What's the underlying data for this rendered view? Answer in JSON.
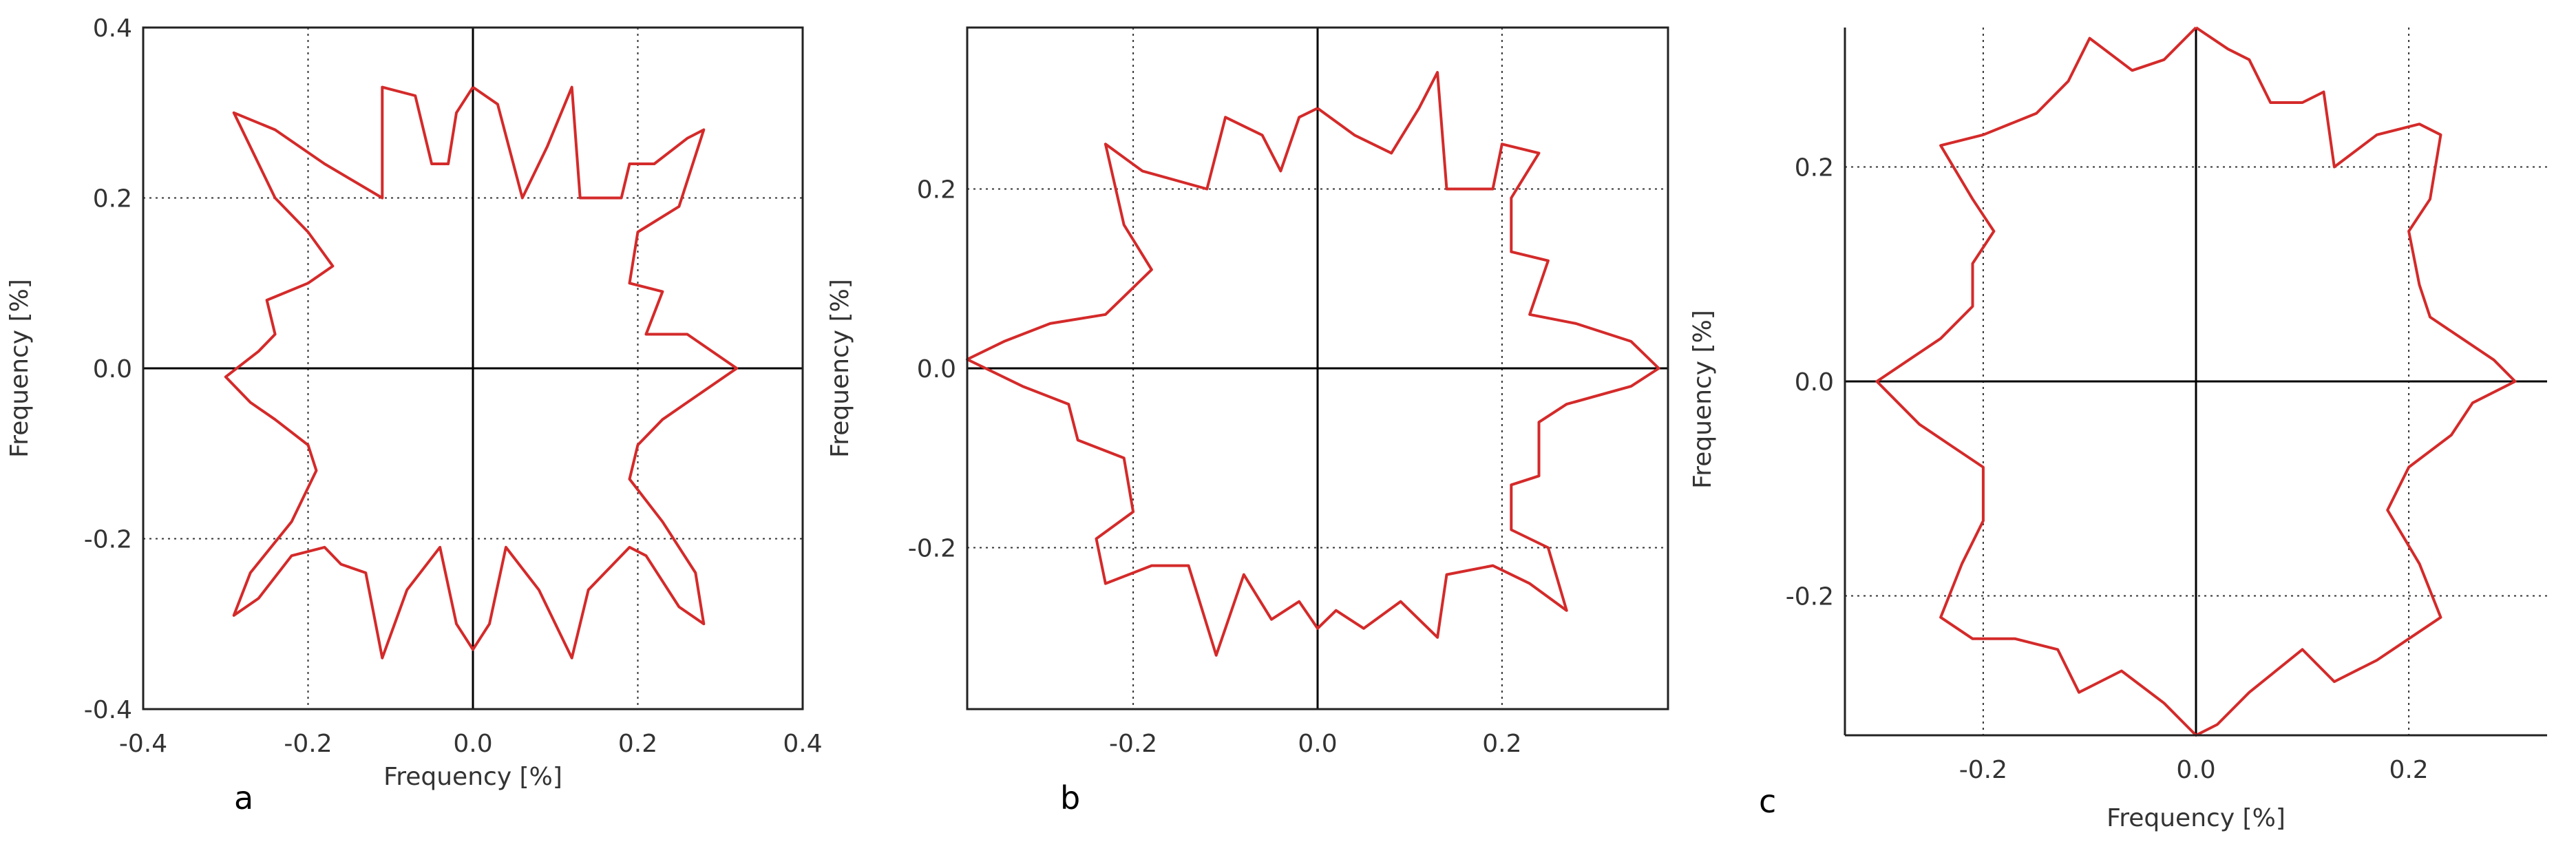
{
  "figure": {
    "colors": {
      "curve": "#d42a2a",
      "axis": "#000000",
      "frame": "#222222",
      "grid": "#333333"
    },
    "panels": [
      {
        "id": "a",
        "label": "a",
        "xlabel": "Frequency [%]",
        "ylabel": "Frequency [%]"
      },
      {
        "id": "b",
        "label": "b",
        "xlabel": "",
        "ylabel": "Frequency [%]"
      },
      {
        "id": "c",
        "label": "c",
        "xlabel": "Frequency [%]",
        "ylabel": "Frequency [%]"
      }
    ]
  },
  "chart_data": [
    {
      "type": "line",
      "panel": "a",
      "title": "",
      "xlabel": "Frequency [%]",
      "ylabel": "Frequency [%]",
      "xlim": [
        -0.4,
        0.4
      ],
      "ylim": [
        -0.4,
        0.4
      ],
      "xticks": [
        -0.4,
        -0.2,
        0.0,
        0.2,
        0.4
      ],
      "yticks": [
        -0.4,
        -0.2,
        0.0,
        0.2,
        0.4
      ],
      "xtick_labels": [
        "-0.4",
        "-0.2",
        "0.0",
        "0.2",
        "0.4"
      ],
      "ytick_labels": [
        "-0.4",
        "-0.2",
        "0.0",
        "0.2",
        "0.4"
      ],
      "grid": true,
      "series": [
        {
          "closed": true,
          "points": [
            [
              0.0,
              0.33
            ],
            [
              0.03,
              0.31
            ],
            [
              0.06,
              0.2
            ],
            [
              0.09,
              0.26
            ],
            [
              0.12,
              0.33
            ],
            [
              0.13,
              0.2
            ],
            [
              0.18,
              0.2
            ],
            [
              0.19,
              0.24
            ],
            [
              0.22,
              0.24
            ],
            [
              0.26,
              0.27
            ],
            [
              0.28,
              0.28
            ],
            [
              0.25,
              0.19
            ],
            [
              0.2,
              0.16
            ],
            [
              0.19,
              0.1
            ],
            [
              0.23,
              0.09
            ],
            [
              0.21,
              0.04
            ],
            [
              0.26,
              0.04
            ],
            [
              0.32,
              0.0
            ],
            [
              0.26,
              -0.04
            ],
            [
              0.23,
              -0.06
            ],
            [
              0.2,
              -0.09
            ],
            [
              0.19,
              -0.13
            ],
            [
              0.23,
              -0.18
            ],
            [
              0.27,
              -0.24
            ],
            [
              0.28,
              -0.3
            ],
            [
              0.25,
              -0.28
            ],
            [
              0.21,
              -0.22
            ],
            [
              0.19,
              -0.21
            ],
            [
              0.16,
              -0.24
            ],
            [
              0.14,
              -0.26
            ],
            [
              0.12,
              -0.34
            ],
            [
              0.08,
              -0.26
            ],
            [
              0.04,
              -0.21
            ],
            [
              0.02,
              -0.3
            ],
            [
              0.0,
              -0.33
            ],
            [
              -0.02,
              -0.3
            ],
            [
              -0.04,
              -0.21
            ],
            [
              -0.08,
              -0.26
            ],
            [
              -0.11,
              -0.34
            ],
            [
              -0.13,
              -0.24
            ],
            [
              -0.16,
              -0.23
            ],
            [
              -0.18,
              -0.21
            ],
            [
              -0.22,
              -0.22
            ],
            [
              -0.26,
              -0.27
            ],
            [
              -0.29,
              -0.29
            ],
            [
              -0.27,
              -0.24
            ],
            [
              -0.22,
              -0.18
            ],
            [
              -0.19,
              -0.12
            ],
            [
              -0.2,
              -0.09
            ],
            [
              -0.24,
              -0.06
            ],
            [
              -0.27,
              -0.04
            ],
            [
              -0.3,
              -0.01
            ],
            [
              -0.26,
              0.02
            ],
            [
              -0.24,
              0.04
            ],
            [
              -0.25,
              0.08
            ],
            [
              -0.2,
              0.1
            ],
            [
              -0.17,
              0.12
            ],
            [
              -0.2,
              0.16
            ],
            [
              -0.24,
              0.2
            ],
            [
              -0.28,
              0.28
            ],
            [
              -0.29,
              0.3
            ],
            [
              -0.24,
              0.28
            ],
            [
              -0.18,
              0.24
            ],
            [
              -0.11,
              0.2
            ],
            [
              -0.11,
              0.33
            ],
            [
              -0.07,
              0.32
            ],
            [
              -0.05,
              0.24
            ],
            [
              -0.03,
              0.24
            ],
            [
              -0.02,
              0.3
            ],
            [
              0.0,
              0.33
            ]
          ]
        }
      ]
    },
    {
      "type": "line",
      "panel": "b",
      "title": "",
      "xlabel": "",
      "ylabel": "Frequency [%]",
      "xlim": [
        -0.38,
        0.38
      ],
      "ylim": [
        -0.38,
        0.38
      ],
      "xticks": [
        -0.2,
        0.0,
        0.2
      ],
      "yticks": [
        -0.2,
        0.0,
        0.2
      ],
      "xtick_labels": [
        "-0.2",
        "0.0",
        "0.2"
      ],
      "ytick_labels": [
        "-0.2",
        "0.0",
        "0.2"
      ],
      "grid": true,
      "series": [
        {
          "closed": true,
          "points": [
            [
              0.0,
              0.29
            ],
            [
              0.04,
              0.26
            ],
            [
              0.08,
              0.24
            ],
            [
              0.11,
              0.29
            ],
            [
              0.13,
              0.33
            ],
            [
              0.14,
              0.2
            ],
            [
              0.19,
              0.2
            ],
            [
              0.2,
              0.25
            ],
            [
              0.24,
              0.24
            ],
            [
              0.21,
              0.19
            ],
            [
              0.21,
              0.13
            ],
            [
              0.25,
              0.12
            ],
            [
              0.23,
              0.06
            ],
            [
              0.28,
              0.05
            ],
            [
              0.34,
              0.03
            ],
            [
              0.37,
              0.0
            ],
            [
              0.34,
              -0.02
            ],
            [
              0.27,
              -0.04
            ],
            [
              0.24,
              -0.06
            ],
            [
              0.24,
              -0.12
            ],
            [
              0.21,
              -0.13
            ],
            [
              0.21,
              -0.18
            ],
            [
              0.25,
              -0.2
            ],
            [
              0.27,
              -0.27
            ],
            [
              0.23,
              -0.24
            ],
            [
              0.19,
              -0.22
            ],
            [
              0.14,
              -0.23
            ],
            [
              0.13,
              -0.3
            ],
            [
              0.09,
              -0.26
            ],
            [
              0.05,
              -0.29
            ],
            [
              0.02,
              -0.27
            ],
            [
              0.0,
              -0.29
            ],
            [
              -0.02,
              -0.26
            ],
            [
              -0.05,
              -0.28
            ],
            [
              -0.08,
              -0.23
            ],
            [
              -0.11,
              -0.32
            ],
            [
              -0.14,
              -0.22
            ],
            [
              -0.18,
              -0.22
            ],
            [
              -0.23,
              -0.24
            ],
            [
              -0.24,
              -0.19
            ],
            [
              -0.2,
              -0.16
            ],
            [
              -0.21,
              -0.1
            ],
            [
              -0.26,
              -0.08
            ],
            [
              -0.27,
              -0.04
            ],
            [
              -0.32,
              -0.02
            ],
            [
              -0.38,
              0.01
            ],
            [
              -0.34,
              0.03
            ],
            [
              -0.29,
              0.05
            ],
            [
              -0.23,
              0.06
            ],
            [
              -0.21,
              0.08
            ],
            [
              -0.18,
              0.11
            ],
            [
              -0.21,
              0.16
            ],
            [
              -0.23,
              0.25
            ],
            [
              -0.19,
              0.22
            ],
            [
              -0.12,
              0.2
            ],
            [
              -0.1,
              0.28
            ],
            [
              -0.06,
              0.26
            ],
            [
              -0.04,
              0.22
            ],
            [
              -0.02,
              0.28
            ],
            [
              0.0,
              0.29
            ]
          ]
        }
      ]
    },
    {
      "type": "line",
      "panel": "c",
      "title": "",
      "xlabel": "Frequency [%]",
      "ylabel": "Frequency [%]",
      "xlim": [
        -0.33,
        0.33
      ],
      "ylim": [
        -0.33,
        0.33
      ],
      "xticks": [
        -0.2,
        0.0,
        0.2
      ],
      "yticks": [
        -0.2,
        0.0,
        0.2
      ],
      "xtick_labels": [
        "-0.2",
        "0.0",
        "0.2"
      ],
      "ytick_labels": [
        "-0.2",
        "0.0",
        "0.2"
      ],
      "grid": true,
      "series": [
        {
          "closed": true,
          "points": [
            [
              0.0,
              0.33
            ],
            [
              0.03,
              0.31
            ],
            [
              0.05,
              0.3
            ],
            [
              0.07,
              0.26
            ],
            [
              0.1,
              0.26
            ],
            [
              0.12,
              0.27
            ],
            [
              0.13,
              0.2
            ],
            [
              0.17,
              0.23
            ],
            [
              0.21,
              0.24
            ],
            [
              0.23,
              0.23
            ],
            [
              0.22,
              0.17
            ],
            [
              0.2,
              0.14
            ],
            [
              0.21,
              0.09
            ],
            [
              0.22,
              0.06
            ],
            [
              0.25,
              0.04
            ],
            [
              0.28,
              0.02
            ],
            [
              0.3,
              0.0
            ],
            [
              0.26,
              -0.02
            ],
            [
              0.24,
              -0.05
            ],
            [
              0.2,
              -0.08
            ],
            [
              0.18,
              -0.12
            ],
            [
              0.21,
              -0.17
            ],
            [
              0.23,
              -0.22
            ],
            [
              0.2,
              -0.24
            ],
            [
              0.17,
              -0.26
            ],
            [
              0.13,
              -0.28
            ],
            [
              0.1,
              -0.25
            ],
            [
              0.05,
              -0.29
            ],
            [
              0.02,
              -0.32
            ],
            [
              0.0,
              -0.33
            ],
            [
              -0.03,
              -0.3
            ],
            [
              -0.07,
              -0.27
            ],
            [
              -0.11,
              -0.29
            ],
            [
              -0.13,
              -0.25
            ],
            [
              -0.17,
              -0.24
            ],
            [
              -0.21,
              -0.24
            ],
            [
              -0.24,
              -0.22
            ],
            [
              -0.22,
              -0.17
            ],
            [
              -0.2,
              -0.13
            ],
            [
              -0.2,
              -0.08
            ],
            [
              -0.23,
              -0.06
            ],
            [
              -0.26,
              -0.04
            ],
            [
              -0.28,
              -0.02
            ],
            [
              -0.3,
              0.0
            ],
            [
              -0.27,
              0.02
            ],
            [
              -0.24,
              0.04
            ],
            [
              -0.21,
              0.07
            ],
            [
              -0.21,
              0.11
            ],
            [
              -0.19,
              0.14
            ],
            [
              -0.21,
              0.17
            ],
            [
              -0.24,
              0.22
            ],
            [
              -0.2,
              0.23
            ],
            [
              -0.15,
              0.25
            ],
            [
              -0.12,
              0.28
            ],
            [
              -0.1,
              0.32
            ],
            [
              -0.06,
              0.29
            ],
            [
              -0.03,
              0.3
            ],
            [
              0.0,
              0.33
            ]
          ]
        }
      ]
    }
  ]
}
